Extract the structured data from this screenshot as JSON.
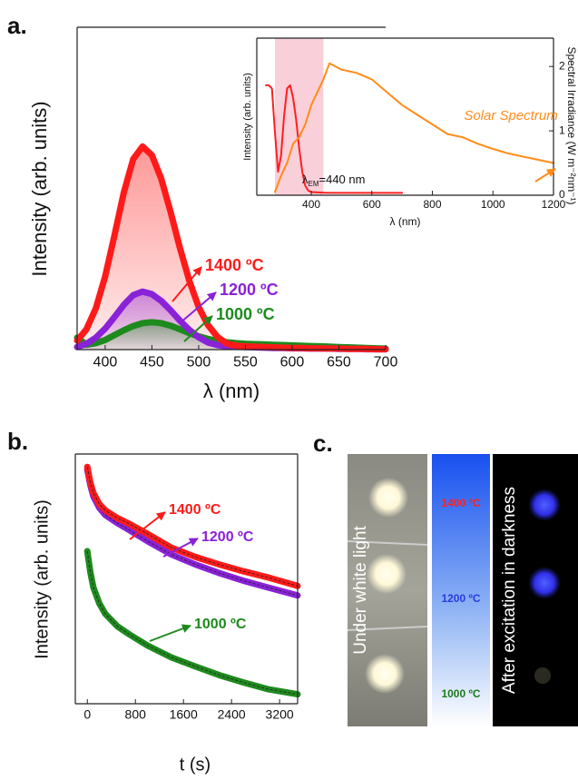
{
  "panel_labels": [
    "a.",
    "b.",
    "c."
  ],
  "chart_data": [
    {
      "type": "line",
      "xlabel": "λ (nm)",
      "ylabel": "Intensity (arb. units)",
      "x": [
        370,
        380,
        390,
        400,
        410,
        420,
        430,
        440,
        450,
        460,
        470,
        480,
        490,
        500,
        510,
        520,
        530,
        540,
        550,
        560,
        570,
        580,
        590,
        600,
        610,
        620,
        630,
        640,
        650,
        660,
        670,
        680,
        690,
        700
      ],
      "xlim": [
        370,
        700
      ],
      "xticks": [
        400,
        450,
        500,
        550,
        600,
        650,
        700
      ],
      "ylim": [
        0,
        100
      ],
      "fill_under": true,
      "series": [
        {
          "name": "1400 ºC",
          "color": "#ff1a1a",
          "values": [
            2.8,
            6.3,
            12.8,
            22.7,
            35.5,
            48.8,
            59.1,
            63,
            60.3,
            53.0,
            42.7,
            31.5,
            21.4,
            13.2,
            7.6,
            4.0,
            1.9,
            1.2,
            1.0,
            0.9,
            0.8,
            0.7,
            0.6,
            0.5,
            0.5,
            0.4,
            0.4,
            0.3,
            0.3,
            0.2,
            0.2,
            0.2,
            0.1,
            0.1
          ]
        },
        {
          "name": "1200 ºC",
          "color": "#8a22d8",
          "values": [
            0.8,
            1.8,
            3.7,
            6.5,
            10.1,
            13.9,
            16.9,
            18,
            17.2,
            15.1,
            12.2,
            9.0,
            6.1,
            3.8,
            2.2,
            1.4,
            1.0,
            0.9,
            0.8,
            0.7,
            0.6,
            0.5,
            0.5,
            0.4,
            0.4,
            0.3,
            0.3,
            0.3,
            0.2,
            0.2,
            0.2,
            0.1,
            0.1,
            0.1
          ]
        },
        {
          "name": "1000 ºC",
          "color": "#1e8a1e",
          "values": [
            3.7,
            1.5,
            2.0,
            3.0,
            4.5,
            6.0,
            7.3,
            8.2,
            8.5,
            8.2,
            7.4,
            6.3,
            5.1,
            4.1,
            3.3,
            2.7,
            2.3,
            2.0,
            1.8,
            1.7,
            1.6,
            1.5,
            1.4,
            1.3,
            1.2,
            1.1,
            1.0,
            0.9,
            0.8,
            0.7,
            0.6,
            0.5,
            0.4,
            0.3
          ]
        }
      ]
    },
    {
      "type": "line",
      "xlabel": "λ (nm)",
      "ylabel": "Intensity (arb. units)",
      "y2label": "Spectral Irradiance (W m⁻²nm⁻¹)",
      "annotation_symbol": "λ",
      "annotation_subscript": "EM",
      "annotation_text": "=440 nm",
      "xlim": [
        220,
        1200
      ],
      "xticks": [
        400,
        600,
        800,
        1000,
        1200
      ],
      "ylim": [
        0,
        100
      ],
      "y2lim": [
        0,
        2.44
      ],
      "y2ticks": [
        0,
        1,
        2
      ],
      "shaded_range": [
        280,
        440
      ],
      "shade_color": "#f7c3d0",
      "series": [
        {
          "color": "#ff2020",
          "x": [
            250,
            260,
            270,
            280,
            290,
            300,
            310,
            320,
            330,
            340,
            350,
            360,
            370,
            380,
            390,
            400,
            450,
            500,
            600,
            700
          ],
          "values": [
            70,
            70,
            68,
            40,
            15,
            25,
            50,
            68,
            70,
            62,
            48,
            30,
            15,
            6,
            3,
            2,
            1.5,
            1.5,
            1.5,
            1.5
          ]
        },
        {
          "name": "Solar Spectrum",
          "color": "#ff8c1a",
          "axis": "y2",
          "x": [
            280,
            300,
            320,
            340,
            360,
            380,
            400,
            420,
            440,
            460,
            480,
            500,
            550,
            600,
            650,
            700,
            750,
            800,
            850,
            900,
            950,
            1000,
            1050,
            1100,
            1150,
            1200
          ],
          "values": [
            0.05,
            0.3,
            0.5,
            0.8,
            0.9,
            1.1,
            1.4,
            1.6,
            1.8,
            2.05,
            2.0,
            1.95,
            1.9,
            1.8,
            1.6,
            1.4,
            1.25,
            1.1,
            0.95,
            0.9,
            0.8,
            0.72,
            0.65,
            0.6,
            0.55,
            0.5
          ]
        }
      ]
    },
    {
      "type": "line",
      "xlabel": "t (s)",
      "ylabel": "Intensity (arb. units)",
      "log_y": true,
      "fit_lines": true,
      "x": [
        0,
        50,
        100,
        200,
        300,
        500,
        700,
        1000,
        1400,
        1800,
        2200,
        2600,
        3000,
        3500
      ],
      "xlim": [
        -200,
        3500
      ],
      "xticks": [
        0,
        800,
        1600,
        2400,
        3200
      ],
      "ylim": [
        1,
        1000
      ],
      "series": [
        {
          "name": "1400 ºC",
          "color": "#ff1a1a",
          "values": [
            700,
            450,
            340,
            250,
            210,
            170,
            145,
            110,
            75,
            58,
            47,
            39,
            33,
            26
          ]
        },
        {
          "name": "1200 ºC",
          "color": "#8a22d8",
          "values": [
            650,
            420,
            310,
            225,
            185,
            148,
            122,
            90,
            62,
            47,
            37,
            30,
            25,
            20
          ]
        },
        {
          "name": "1000 ºC",
          "color": "#1e8a1e",
          "values": [
            68,
            38,
            25,
            16,
            12,
            8.5,
            6.8,
            5.0,
            3.6,
            2.8,
            2.2,
            1.8,
            1.5,
            1.3
          ]
        }
      ]
    }
  ],
  "photo_panel": {
    "left_caption": "Under white light",
    "right_caption": "After excitation in darkness",
    "temperatures": [
      "1400 ºC",
      "1200 ºC",
      "1000 ºC"
    ]
  }
}
